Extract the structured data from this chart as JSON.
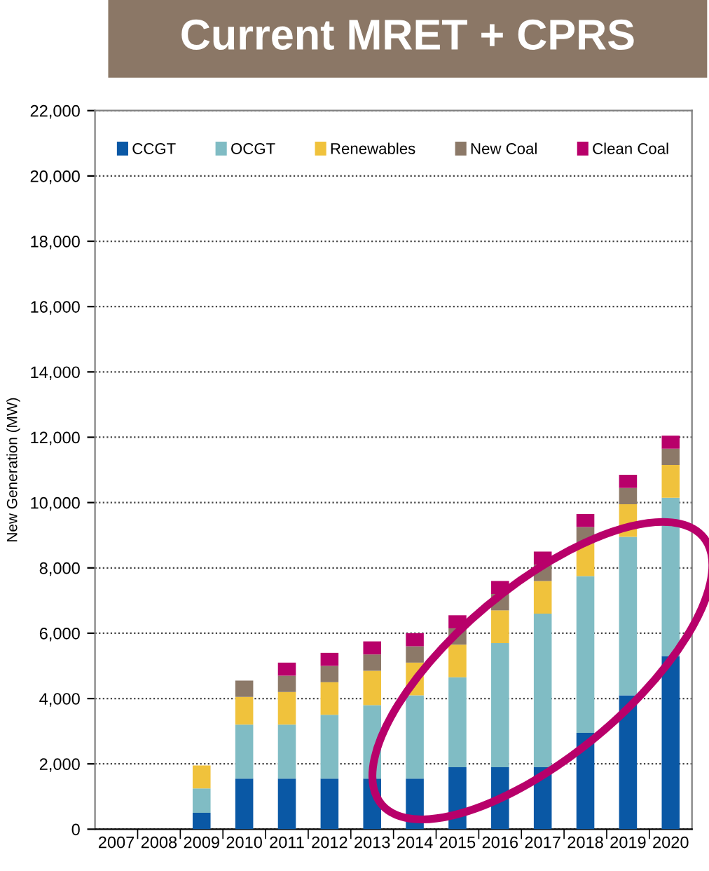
{
  "chart_data": {
    "type": "bar",
    "title": "Current MRET + CPRS",
    "ylabel": "New Generation (MW)",
    "stacked": true,
    "categories": [
      "2007",
      "2008",
      "2009",
      "2010",
      "2011",
      "2012",
      "2013",
      "2014",
      "2015",
      "2016",
      "2017",
      "2018",
      "2019",
      "2020"
    ],
    "series": [
      {
        "name": "CCGT",
        "color": "#0a58a5",
        "values": [
          null,
          null,
          500,
          1550,
          1550,
          1550,
          1550,
          1550,
          1900,
          1900,
          1900,
          2950,
          4100,
          5300
        ]
      },
      {
        "name": "OCGT",
        "color": "#80bcc4",
        "values": [
          null,
          null,
          750,
          1650,
          1650,
          1950,
          2250,
          2550,
          2750,
          3800,
          4700,
          4800,
          4850,
          4850
        ]
      },
      {
        "name": "Renewables",
        "color": "#f0c23c",
        "values": [
          null,
          null,
          700,
          850,
          1000,
          1000,
          1050,
          1000,
          1000,
          1000,
          1000,
          1000,
          1000,
          1000
        ]
      },
      {
        "name": "New Coal",
        "color": "#8c7968",
        "values": [
          null,
          null,
          null,
          500,
          500,
          500,
          500,
          500,
          500,
          500,
          500,
          500,
          500,
          500
        ]
      },
      {
        "name": "Clean Coal",
        "color": "#b8006a",
        "values": [
          null,
          null,
          null,
          null,
          400,
          400,
          400,
          400,
          400,
          400,
          400,
          400,
          400,
          400
        ]
      }
    ],
    "ylim": [
      0,
      22000
    ],
    "yticks": [
      {
        "value": 0,
        "label": "0"
      },
      {
        "value": 2000,
        "label": "2,000"
      },
      {
        "value": 4000,
        "label": "4,000"
      },
      {
        "value": 6000,
        "label": "6,000"
      },
      {
        "value": 8000,
        "label": "8,000"
      },
      {
        "value": 10000,
        "label": "10,000"
      },
      {
        "value": 12000,
        "label": "12,000"
      },
      {
        "value": 14000,
        "label": "14,000"
      },
      {
        "value": 16000,
        "label": "16,000"
      },
      {
        "value": 18000,
        "label": "18,000"
      },
      {
        "value": 20000,
        "label": "20,000"
      },
      {
        "value": 22000,
        "label": "22,000"
      }
    ],
    "grid": "y",
    "legend": "top"
  }
}
